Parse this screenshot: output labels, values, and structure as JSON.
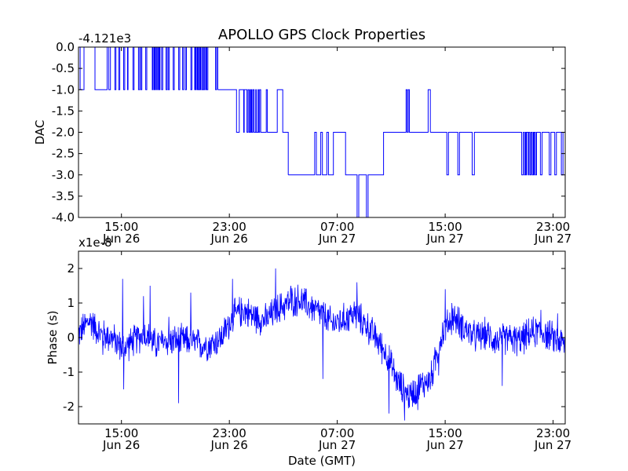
{
  "title": "APOLLO GPS Clock Properties",
  "chart_data": [
    {
      "type": "line",
      "ylabel": "DAC",
      "offset_label": "-4.121e3",
      "xlim_hours": [
        0,
        44.2
      ],
      "ylim": [
        -4.0,
        0.0
      ],
      "yticks": [
        0.0,
        -0.5,
        -1.0,
        -1.5,
        -2.0,
        -2.5,
        -3.0,
        -3.5,
        -4.0
      ],
      "ytick_labels": [
        "0.0",
        "-0.5",
        "-1.0",
        "-1.5",
        "-2.0",
        "-2.5",
        "-3.0",
        "-3.5",
        "-4.0"
      ],
      "xticks": [
        {
          "h": 3.9,
          "time": "15:00",
          "date": "Jun 26"
        },
        {
          "h": 13.7,
          "time": "23:00",
          "date": "Jun 26"
        },
        {
          "h": 23.5,
          "time": "07:00",
          "date": "Jun 27"
        },
        {
          "h": 33.3,
          "time": "15:00",
          "date": "Jun 27"
        },
        {
          "h": 43.1,
          "time": "23:00",
          "date": "Jun 27"
        }
      ],
      "grid": false,
      "color": "#0000ff",
      "series": [
        {
          "segments": [
            [
              0,
              0.0,
              0.15,
              -1.0,
              0.5,
              0.0,
              1.5,
              -1.0,
              2.6,
              0.0,
              2.75,
              -1.0,
              2.9,
              0.0,
              3.3,
              -1.0,
              3.4,
              0.0,
              3.65,
              -1.0,
              3.75,
              0.0,
              4.1,
              -1.0,
              4.2,
              0.0,
              4.45,
              -1.0,
              4.5,
              0.0,
              4.95,
              -1.0,
              5.05,
              0.0,
              5.45,
              -1.0,
              5.55,
              0.0,
              5.65,
              -1.0,
              5.75,
              0.0,
              6.1,
              -1.0,
              6.2,
              0.0,
              6.7,
              -1.0,
              6.75,
              0.0,
              6.85,
              -1.0,
              6.9,
              0.0,
              6.95,
              -1.0,
              7.0,
              0.0,
              7.1,
              -1.0,
              7.15,
              0.0,
              7.25,
              -1.0,
              7.3,
              0.0,
              7.35,
              -1.0,
              7.4,
              0.0,
              7.55,
              -1.0,
              7.65,
              0.0,
              7.95,
              -1.0,
              8.05,
              0.0,
              8.15,
              -1.0,
              8.25,
              0.0,
              8.6,
              -1.0,
              8.7,
              0.0,
              9.1,
              -1.0,
              9.2,
              0.0,
              9.45,
              -1.0,
              9.55,
              0.0,
              9.7,
              -1.0,
              9.8,
              0.0,
              10.2,
              -1.0,
              10.3,
              0.0,
              10.55,
              -1.0,
              10.6,
              0.0,
              10.65,
              -1.0,
              10.7,
              0.0,
              10.8,
              -1.0,
              10.85,
              0.0,
              10.9,
              -1.0,
              11.0,
              0.0,
              11.05,
              -1.0,
              11.1,
              0.0,
              11.2,
              -1.0,
              11.3,
              0.0,
              11.35,
              -1.0,
              11.45,
              0.0,
              11.55,
              -1.0,
              11.6,
              0.0,
              11.65,
              -1.0,
              11.75,
              0.0,
              12.45,
              -1.0,
              12.55,
              0.0,
              12.65,
              -1.0
            ],
            [
              12.65,
              -1.0,
              14.35,
              -2.0,
              14.6,
              -1.0,
              15.0,
              -2.0,
              15.05,
              -1.0,
              15.3,
              -2.0,
              15.4,
              -1.0,
              15.5,
              -2.0,
              15.6,
              -1.0,
              15.65,
              -2.0,
              15.7,
              -1.0,
              15.75,
              -2.0,
              15.85,
              -1.0,
              15.95,
              -2.0,
              16.1,
              -1.0,
              16.15,
              -2.0,
              16.3,
              -1.0,
              16.35,
              -2.0,
              16.45,
              -1.0,
              16.55,
              -2.0,
              17.05,
              -1.0,
              17.15,
              -2.0,
              18.05,
              -1.0,
              18.55,
              -2.0,
              19.05,
              -3.0
            ],
            [
              19.05,
              -3.0,
              21.45,
              -2.0,
              21.6,
              -3.0,
              22.0,
              -2.0,
              22.15,
              -3.0,
              22.55,
              -2.0,
              22.7,
              -3.0,
              23.15,
              -2.0,
              24.25,
              -3.0,
              25.3,
              -4.0,
              25.45,
              -3.0,
              26.15,
              -4.0,
              26.3,
              -3.0,
              27.7,
              -2.0,
              29.75,
              -1.0,
              29.85,
              -2.0,
              29.95,
              -1.0,
              30.05,
              -2.0,
              31.75,
              -1.0,
              31.95,
              -2.0
            ],
            [
              31.95,
              -2.0,
              33.45,
              -3.0,
              33.6,
              -2.0,
              34.45,
              -3.0,
              34.6,
              -2.0,
              35.75,
              -3.0,
              35.95,
              -2.0,
              40.25,
              -3.0,
              40.4,
              -2.0,
              40.5,
              -3.0,
              40.6,
              -2.0,
              40.65,
              -3.0,
              40.7,
              -2.0,
              40.85,
              -3.0,
              40.9,
              -2.0,
              41.0,
              -3.0,
              41.1,
              -2.0,
              41.2,
              -3.0,
              41.3,
              -2.0,
              41.35,
              -3.0,
              41.4,
              -2.0,
              41.5,
              -3.0,
              41.6,
              -2.0,
              41.95,
              -3.0,
              42.1,
              -2.0,
              42.75,
              -3.0,
              42.9,
              -2.0,
              43.25,
              -3.0,
              43.4,
              -2.0,
              43.85,
              -3.0,
              44.0,
              -2.0,
              44.2,
              -3.0
            ]
          ]
        }
      ]
    },
    {
      "type": "line",
      "ylabel": "Phase (s)",
      "xlabel": "Date (GMT)",
      "offset_label": "x1e-8",
      "xlim_hours": [
        0,
        44.2
      ],
      "ylim": [
        -2.5,
        2.5
      ],
      "yticks": [
        2,
        1,
        0,
        -1,
        -2
      ],
      "ytick_labels": [
        "2",
        "1",
        "0",
        "-1",
        "-2"
      ],
      "xticks": [
        {
          "h": 3.9,
          "time": "15:00",
          "date": "Jun 26"
        },
        {
          "h": 13.7,
          "time": "23:00",
          "date": "Jun 26"
        },
        {
          "h": 23.5,
          "time": "07:00",
          "date": "Jun 27"
        },
        {
          "h": 33.3,
          "time": "15:00",
          "date": "Jun 27"
        },
        {
          "h": 43.1,
          "time": "23:00",
          "date": "Jun 27"
        }
      ],
      "grid": false,
      "color": "#0000ff",
      "series": [
        {
          "baseline": [
            [
              0,
              0.1
            ],
            [
              1,
              0.5
            ],
            [
              2,
              0.1
            ],
            [
              3,
              0.0
            ],
            [
              4,
              -0.3
            ],
            [
              5,
              -0.1
            ],
            [
              6,
              0.1
            ],
            [
              7,
              -0.2
            ],
            [
              8,
              -0.1
            ],
            [
              9,
              -0.1
            ],
            [
              10,
              -0.1
            ],
            [
              11,
              -0.2
            ],
            [
              12,
              -0.2
            ],
            [
              13,
              0.0
            ],
            [
              14,
              0.6
            ],
            [
              15,
              0.8
            ],
            [
              16,
              0.6
            ],
            [
              17,
              0.5
            ],
            [
              18,
              0.8
            ],
            [
              19,
              1.0
            ],
            [
              20,
              1.1
            ],
            [
              21,
              0.9
            ],
            [
              22,
              0.7
            ],
            [
              23,
              0.4
            ],
            [
              24,
              0.5
            ],
            [
              25,
              0.7
            ],
            [
              26,
              0.4
            ],
            [
              27,
              0.0
            ],
            [
              28,
              -0.5
            ],
            [
              29,
              -1.3
            ],
            [
              30,
              -1.7
            ],
            [
              31,
              -1.4
            ],
            [
              32,
              -1.2
            ],
            [
              33,
              0.1
            ],
            [
              34,
              0.6
            ],
            [
              35,
              0.3
            ],
            [
              36,
              0.0
            ],
            [
              37,
              0.1
            ],
            [
              38,
              -0.1
            ],
            [
              39,
              0.0
            ],
            [
              40,
              -0.1
            ],
            [
              41,
              0.1
            ],
            [
              42,
              0.2
            ],
            [
              43,
              0.0
            ],
            [
              44.2,
              -0.2
            ]
          ],
          "noise_amplitude": 0.55,
          "extremes": [
            [
              1.2,
              0.6
            ],
            [
              2.2,
              -0.5
            ],
            [
              4.0,
              1.7
            ],
            [
              4.1,
              -1.5
            ],
            [
              5.9,
              1.2
            ],
            [
              6.5,
              1.5
            ],
            [
              7.7,
              -0.3
            ],
            [
              8.2,
              0.6
            ],
            [
              9.1,
              -1.9
            ],
            [
              10.2,
              1.3
            ],
            [
              14.0,
              1.7
            ],
            [
              17.9,
              2.0
            ],
            [
              19.3,
              1.5
            ],
            [
              22.2,
              -1.2
            ],
            [
              25.3,
              1.6
            ],
            [
              28.2,
              -2.2
            ],
            [
              29.6,
              -2.4
            ],
            [
              30.8,
              -2.1
            ],
            [
              32.7,
              -1.1
            ],
            [
              33.3,
              1.4
            ],
            [
              33.9,
              1.0
            ],
            [
              38.5,
              -1.4
            ],
            [
              42.0,
              0.8
            ],
            [
              43.5,
              0.7
            ]
          ]
        }
      ]
    }
  ]
}
